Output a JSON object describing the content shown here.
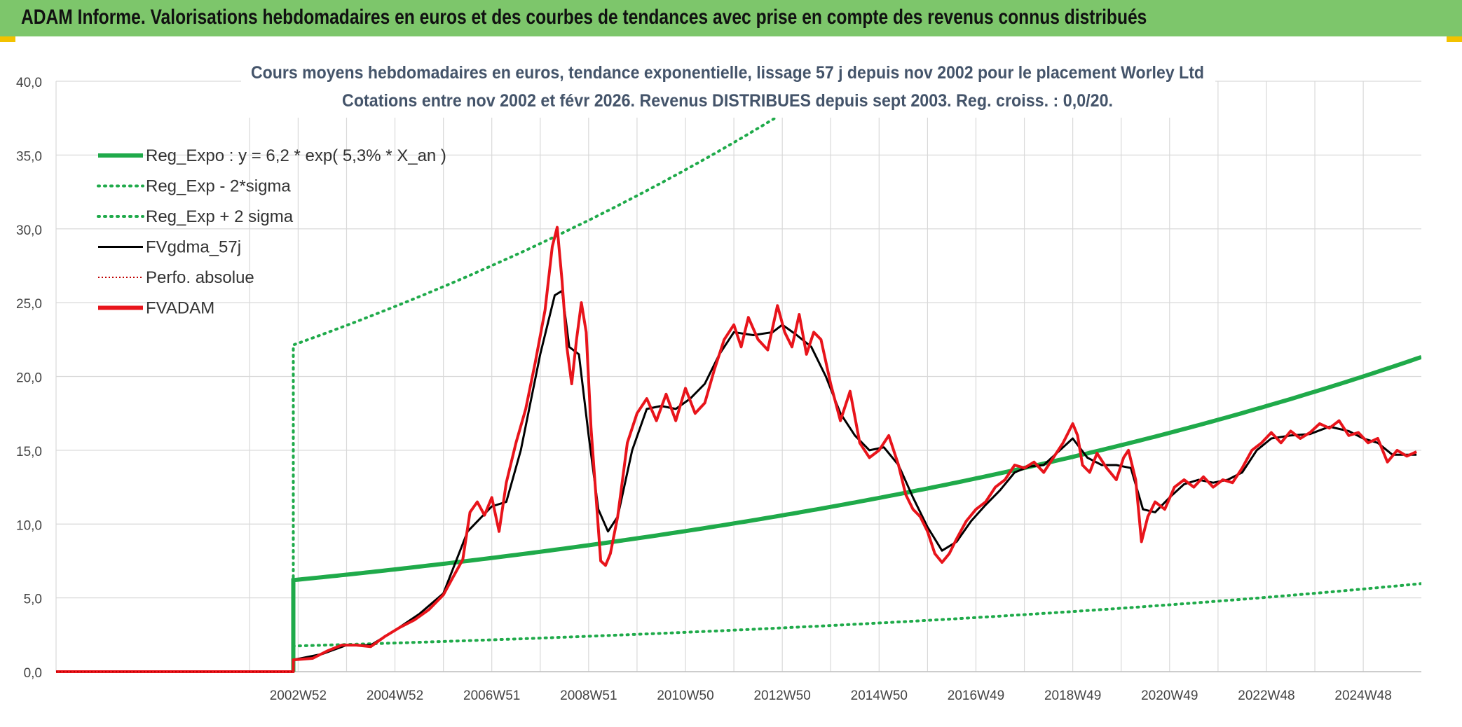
{
  "header": {
    "title": "ADAM Informe. Valorisations hebdomadaires en euros et des courbes de tendances avec prise en compte des revenus connus distribués"
  },
  "chart_data": {
    "type": "line",
    "title": "Cours moyens hebdomadaires en euros, tendance exponentielle, lissage 57 j depuis nov 2002 pour le placement Worley Ltd",
    "subtitle": "Cotations entre nov 2002 et févr 2026. Revenus DISTRIBUES depuis sept 2003. Reg. croiss. : 0,0/20.",
    "ylim": [
      0,
      40
    ],
    "yticks": [
      "0,0",
      "5,0",
      "10,0",
      "15,0",
      "20,0",
      "25,0",
      "30,0",
      "35,0",
      "40,0"
    ],
    "xlim": [
      1998.0,
      2026.2
    ],
    "xticks": [
      {
        "label": "2002W52",
        "x": 2003.0
      },
      {
        "label": "2004W52",
        "x": 2005.0
      },
      {
        "label": "2006W51",
        "x": 2007.0
      },
      {
        "label": "2008W51",
        "x": 2009.0
      },
      {
        "label": "2010W50",
        "x": 2011.0
      },
      {
        "label": "2012W50",
        "x": 2013.0
      },
      {
        "label": "2014W50",
        "x": 2015.0
      },
      {
        "label": "2016W49",
        "x": 2017.0
      },
      {
        "label": "2018W49",
        "x": 2019.0
      },
      {
        "label": "2020W49",
        "x": 2021.0
      },
      {
        "label": "2022W48",
        "x": 2023.0
      },
      {
        "label": "2024W48",
        "x": 2025.0
      }
    ],
    "regression": {
      "a": 6.2,
      "rate": 0.053,
      "start": 2002.9,
      "end": 2026.2,
      "minus2sigma_factor": 0.28,
      "plus2sigma_factor": 3.57
    },
    "series": [
      {
        "name": "FVADAM",
        "color": "#e8141b",
        "points": [
          [
            1998.0,
            0
          ],
          [
            2002.9,
            0
          ],
          [
            2002.9,
            0.8
          ],
          [
            2003.3,
            0.9
          ],
          [
            2003.6,
            1.4
          ],
          [
            2003.9,
            1.8
          ],
          [
            2004.2,
            1.8
          ],
          [
            2004.5,
            1.7
          ],
          [
            2004.8,
            2.4
          ],
          [
            2005.1,
            3.0
          ],
          [
            2005.4,
            3.5
          ],
          [
            2005.7,
            4.2
          ],
          [
            2006.0,
            5.2
          ],
          [
            2006.2,
            6.4
          ],
          [
            2006.4,
            7.6
          ],
          [
            2006.55,
            10.8
          ],
          [
            2006.7,
            11.5
          ],
          [
            2006.85,
            10.6
          ],
          [
            2007.0,
            11.8
          ],
          [
            2007.15,
            9.5
          ],
          [
            2007.3,
            12.8
          ],
          [
            2007.5,
            15.5
          ],
          [
            2007.7,
            17.8
          ],
          [
            2007.9,
            21.0
          ],
          [
            2008.1,
            24.5
          ],
          [
            2008.25,
            28.8
          ],
          [
            2008.35,
            30.1
          ],
          [
            2008.45,
            26.5
          ],
          [
            2008.55,
            22.0
          ],
          [
            2008.65,
            19.5
          ],
          [
            2008.75,
            22.5
          ],
          [
            2008.85,
            25.0
          ],
          [
            2008.95,
            23.0
          ],
          [
            2009.05,
            16.5
          ],
          [
            2009.15,
            12.0
          ],
          [
            2009.25,
            7.5
          ],
          [
            2009.35,
            7.2
          ],
          [
            2009.45,
            8.0
          ],
          [
            2009.6,
            10.5
          ],
          [
            2009.8,
            15.5
          ],
          [
            2010.0,
            17.5
          ],
          [
            2010.2,
            18.5
          ],
          [
            2010.4,
            17.0
          ],
          [
            2010.6,
            18.8
          ],
          [
            2010.8,
            17.0
          ],
          [
            2011.0,
            19.2
          ],
          [
            2011.2,
            17.5
          ],
          [
            2011.4,
            18.2
          ],
          [
            2011.6,
            20.5
          ],
          [
            2011.8,
            22.5
          ],
          [
            2012.0,
            23.5
          ],
          [
            2012.15,
            22.0
          ],
          [
            2012.3,
            24.0
          ],
          [
            2012.5,
            22.5
          ],
          [
            2012.7,
            21.8
          ],
          [
            2012.9,
            24.8
          ],
          [
            2013.05,
            23.0
          ],
          [
            2013.2,
            22.0
          ],
          [
            2013.35,
            24.2
          ],
          [
            2013.5,
            21.5
          ],
          [
            2013.65,
            23.0
          ],
          [
            2013.8,
            22.5
          ],
          [
            2014.0,
            19.5
          ],
          [
            2014.2,
            17.0
          ],
          [
            2014.4,
            19.0
          ],
          [
            2014.6,
            15.5
          ],
          [
            2014.8,
            14.5
          ],
          [
            2015.0,
            15.0
          ],
          [
            2015.2,
            16.0
          ],
          [
            2015.4,
            14.0
          ],
          [
            2015.55,
            12.0
          ],
          [
            2015.7,
            11.0
          ],
          [
            2015.85,
            10.5
          ],
          [
            2016.0,
            9.5
          ],
          [
            2016.15,
            8.0
          ],
          [
            2016.3,
            7.4
          ],
          [
            2016.45,
            8.0
          ],
          [
            2016.6,
            9.0
          ],
          [
            2016.8,
            10.2
          ],
          [
            2017.0,
            11.0
          ],
          [
            2017.2,
            11.5
          ],
          [
            2017.4,
            12.5
          ],
          [
            2017.6,
            13.0
          ],
          [
            2017.8,
            14.0
          ],
          [
            2018.0,
            13.8
          ],
          [
            2018.2,
            14.2
          ],
          [
            2018.4,
            13.5
          ],
          [
            2018.6,
            14.5
          ],
          [
            2018.8,
            15.5
          ],
          [
            2019.0,
            16.8
          ],
          [
            2019.1,
            16.0
          ],
          [
            2019.2,
            14.0
          ],
          [
            2019.35,
            13.5
          ],
          [
            2019.5,
            14.8
          ],
          [
            2019.7,
            13.8
          ],
          [
            2019.9,
            13.0
          ],
          [
            2020.05,
            14.5
          ],
          [
            2020.15,
            15.0
          ],
          [
            2020.3,
            13.0
          ],
          [
            2020.42,
            8.8
          ],
          [
            2020.55,
            10.5
          ],
          [
            2020.7,
            11.5
          ],
          [
            2020.9,
            11.0
          ],
          [
            2021.1,
            12.5
          ],
          [
            2021.3,
            13.0
          ],
          [
            2021.5,
            12.5
          ],
          [
            2021.7,
            13.2
          ],
          [
            2021.9,
            12.5
          ],
          [
            2022.1,
            13.0
          ],
          [
            2022.3,
            12.8
          ],
          [
            2022.5,
            13.8
          ],
          [
            2022.7,
            15.0
          ],
          [
            2022.9,
            15.5
          ],
          [
            2023.1,
            16.2
          ],
          [
            2023.3,
            15.5
          ],
          [
            2023.5,
            16.3
          ],
          [
            2023.7,
            15.8
          ],
          [
            2023.9,
            16.2
          ],
          [
            2024.1,
            16.8
          ],
          [
            2024.3,
            16.5
          ],
          [
            2024.5,
            17.0
          ],
          [
            2024.7,
            16.0
          ],
          [
            2024.9,
            16.2
          ],
          [
            2025.1,
            15.5
          ],
          [
            2025.3,
            15.8
          ],
          [
            2025.5,
            14.2
          ],
          [
            2025.7,
            15.0
          ],
          [
            2025.9,
            14.6
          ],
          [
            2026.1,
            14.9
          ]
        ]
      },
      {
        "name": "FVgdma_57j",
        "color": "#000000",
        "points": [
          [
            1998.0,
            0
          ],
          [
            2002.9,
            0
          ],
          [
            2002.9,
            0.8
          ],
          [
            2003.5,
            1.2
          ],
          [
            2004.0,
            1.8
          ],
          [
            2004.5,
            1.8
          ],
          [
            2005.0,
            2.8
          ],
          [
            2005.5,
            3.9
          ],
          [
            2006.0,
            5.3
          ],
          [
            2006.5,
            9.5
          ],
          [
            2007.0,
            11.2
          ],
          [
            2007.3,
            11.5
          ],
          [
            2007.6,
            15.0
          ],
          [
            2008.0,
            21.5
          ],
          [
            2008.3,
            25.5
          ],
          [
            2008.45,
            25.8
          ],
          [
            2008.6,
            22.0
          ],
          [
            2008.8,
            21.5
          ],
          [
            2009.0,
            16.0
          ],
          [
            2009.2,
            11.0
          ],
          [
            2009.4,
            9.5
          ],
          [
            2009.6,
            10.5
          ],
          [
            2009.9,
            15.0
          ],
          [
            2010.2,
            17.8
          ],
          [
            2010.5,
            18.0
          ],
          [
            2010.8,
            17.8
          ],
          [
            2011.1,
            18.5
          ],
          [
            2011.4,
            19.5
          ],
          [
            2011.7,
            21.5
          ],
          [
            2012.0,
            23.0
          ],
          [
            2012.4,
            22.8
          ],
          [
            2012.8,
            23.0
          ],
          [
            2013.0,
            23.5
          ],
          [
            2013.3,
            22.8
          ],
          [
            2013.6,
            22.0
          ],
          [
            2013.9,
            20.0
          ],
          [
            2014.2,
            17.5
          ],
          [
            2014.5,
            16.0
          ],
          [
            2014.8,
            15.0
          ],
          [
            2015.1,
            15.2
          ],
          [
            2015.4,
            14.0
          ],
          [
            2015.7,
            11.8
          ],
          [
            2016.0,
            9.8
          ],
          [
            2016.3,
            8.2
          ],
          [
            2016.6,
            8.8
          ],
          [
            2016.9,
            10.2
          ],
          [
            2017.2,
            11.3
          ],
          [
            2017.5,
            12.3
          ],
          [
            2017.8,
            13.5
          ],
          [
            2018.1,
            13.9
          ],
          [
            2018.4,
            14.0
          ],
          [
            2018.8,
            15.2
          ],
          [
            2019.0,
            15.8
          ],
          [
            2019.3,
            14.5
          ],
          [
            2019.6,
            14.0
          ],
          [
            2019.9,
            14.0
          ],
          [
            2020.2,
            13.8
          ],
          [
            2020.45,
            11.0
          ],
          [
            2020.7,
            10.8
          ],
          [
            2021.0,
            11.8
          ],
          [
            2021.3,
            12.7
          ],
          [
            2021.6,
            13.0
          ],
          [
            2021.9,
            12.8
          ],
          [
            2022.2,
            13.0
          ],
          [
            2022.5,
            13.5
          ],
          [
            2022.8,
            15.0
          ],
          [
            2023.1,
            15.8
          ],
          [
            2023.5,
            16.0
          ],
          [
            2023.9,
            16.1
          ],
          [
            2024.3,
            16.6
          ],
          [
            2024.7,
            16.3
          ],
          [
            2025.0,
            15.8
          ],
          [
            2025.3,
            15.5
          ],
          [
            2025.6,
            14.7
          ],
          [
            2026.1,
            14.7
          ]
        ]
      },
      {
        "name": "Perfo. absolue",
        "color": "#c00000",
        "points": [
          [
            1998.0,
            0
          ],
          [
            2002.9,
            0
          ]
        ]
      }
    ],
    "legend": {
      "position": "top-left",
      "entries": [
        {
          "label": "Reg_Expo : y = 6,2 * exp( 5,3% *  X_an )",
          "style": "solid-thick",
          "color": "#1faa4a"
        },
        {
          "label": "Reg_Exp - 2*sigma",
          "style": "dotted",
          "color": "#1faa4a"
        },
        {
          "label": "Reg_Exp + 2 sigma",
          "style": "dotted",
          "color": "#1faa4a"
        },
        {
          "label": "FVgdma_57j",
          "style": "solid",
          "color": "#000000"
        },
        {
          "label": "Perfo. absolue",
          "style": "dotted-thin",
          "color": "#c00000"
        },
        {
          "label": "FVADAM",
          "style": "solid-thick",
          "color": "#e8141b"
        }
      ]
    },
    "colors": {
      "green": "#1faa4a",
      "red": "#e8141b",
      "black": "#000000",
      "grid": "#d9d9d9"
    }
  }
}
